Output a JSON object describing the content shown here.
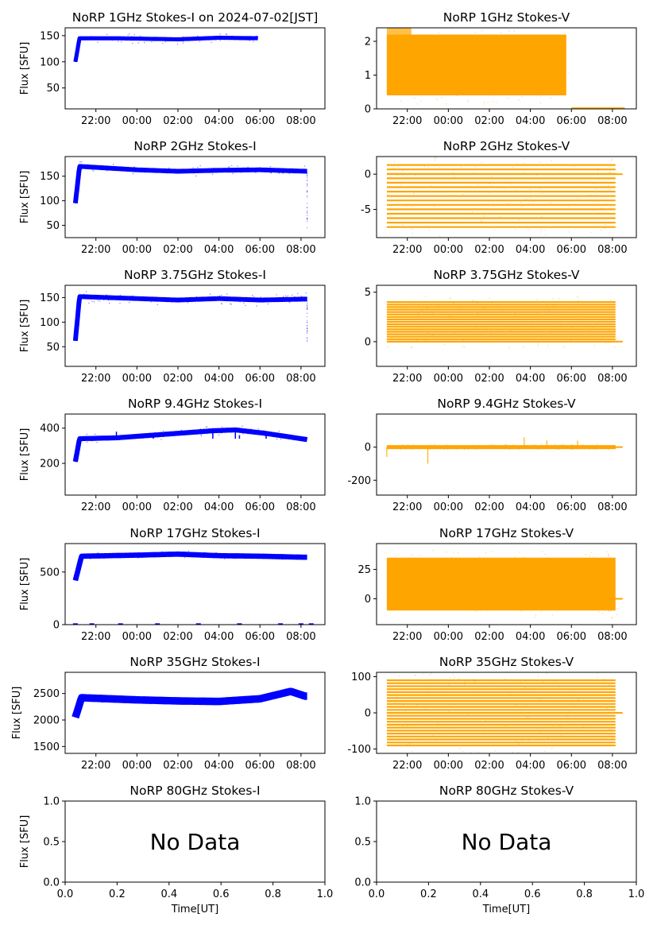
{
  "time_ticks": [
    "22:00",
    "00:00",
    "02:00",
    "04:00",
    "06:00",
    "08:00"
  ],
  "unit_ticks": [
    "0.0",
    "0.2",
    "0.4",
    "0.6",
    "0.8",
    "1.0"
  ],
  "ylabel": "Flux [SFU]",
  "xlabel": "Time[UT]",
  "no_data_text": "No Data",
  "colors": {
    "stokes_i": "#0000ff",
    "stokes_v": "#ffa500"
  },
  "chart_data": [
    {
      "type": "scatter",
      "title": "NoRP 1GHz Stokes-I on 2024-07-02[JST]",
      "ylabel": "Flux [SFU]",
      "xlim": [
        "20:30",
        "09:10"
      ],
      "ylim": [
        10,
        165
      ],
      "yticks": [
        50,
        100,
        150
      ],
      "series": [
        {
          "values": [
            [
              21.0,
              100
            ],
            [
              21.2,
              145
            ],
            [
              23.0,
              145
            ],
            [
              2.0,
              143
            ],
            [
              4.0,
              146
            ],
            [
              5.9,
              145
            ]
          ]
        }
      ]
    },
    {
      "type": "scatter",
      "title": "NoRP 1GHz Stokes-V",
      "xlim": [
        "20:30",
        "09:10"
      ],
      "ylim": [
        0,
        2.4
      ],
      "yticks": [
        0,
        1,
        2
      ],
      "series": [
        {
          "values": [
            [
              21.0,
              1.6
            ],
            [
              22.0,
              1.4
            ],
            [
              0.0,
              1.2
            ],
            [
              2.0,
              1.2
            ],
            [
              4.0,
              1.2
            ],
            [
              5.9,
              1.3
            ],
            [
              8.5,
              0.0
            ]
          ]
        }
      ]
    },
    {
      "type": "scatter",
      "title": "NoRP 2GHz Stokes-I",
      "ylabel": "Flux [SFU]",
      "xlim": [
        "20:30",
        "09:10"
      ],
      "ylim": [
        25,
        190
      ],
      "yticks": [
        50,
        100,
        150
      ],
      "series": [
        {
          "values": [
            [
              21.0,
              95
            ],
            [
              21.2,
              170
            ],
            [
              0.0,
              163
            ],
            [
              2.0,
              160
            ],
            [
              4.0,
              162
            ],
            [
              6.0,
              163
            ],
            [
              8.3,
              160
            ]
          ]
        }
      ]
    },
    {
      "type": "scatter",
      "title": "NoRP 2GHz Stokes-V",
      "xlim": [
        "20:30",
        "09:10"
      ],
      "ylim": [
        -9,
        2.5
      ],
      "yticks": [
        -5,
        0
      ],
      "series": [
        {
          "values": [
            [
              21.0,
              0
            ],
            [
              0.0,
              -3
            ],
            [
              4.0,
              -3
            ],
            [
              8.5,
              0
            ]
          ]
        }
      ]
    },
    {
      "type": "scatter",
      "title": "NoRP 3.75GHz Stokes-I",
      "ylabel": "Flux [SFU]",
      "xlim": [
        "20:30",
        "09:10"
      ],
      "ylim": [
        10,
        175
      ],
      "yticks": [
        50,
        100,
        150
      ],
      "series": [
        {
          "values": [
            [
              21.0,
              62
            ],
            [
              21.2,
              152
            ],
            [
              0.0,
              148
            ],
            [
              2.0,
              145
            ],
            [
              4.0,
              148
            ],
            [
              6.0,
              145
            ],
            [
              8.3,
              147
            ]
          ]
        }
      ]
    },
    {
      "type": "scatter",
      "title": "NoRP 3.75GHz Stokes-V",
      "xlim": [
        "20:30",
        "09:10"
      ],
      "ylim": [
        -2.5,
        5.7
      ],
      "yticks": [
        0,
        5
      ],
      "series": [
        {
          "values": [
            [
              21.0,
              -0.5
            ],
            [
              0.0,
              2.0
            ],
            [
              4.0,
              2.0
            ],
            [
              8.5,
              0
            ]
          ]
        }
      ]
    },
    {
      "type": "scatter",
      "title": "NoRP 9.4GHz Stokes-I",
      "ylabel": "Flux [SFU]",
      "xlim": [
        "20:30",
        "09:10"
      ],
      "ylim": [
        20,
        480
      ],
      "yticks": [
        200,
        400
      ],
      "series": [
        {
          "values": [
            [
              21.0,
              210
            ],
            [
              21.2,
              340
            ],
            [
              23.0,
              345
            ],
            [
              3.7,
              385
            ],
            [
              4.8,
              390
            ],
            [
              6.3,
              370
            ],
            [
              8.3,
              335
            ]
          ]
        }
      ]
    },
    {
      "type": "scatter",
      "title": "NoRP 9.4GHz Stokes-V",
      "xlim": [
        "20:30",
        "09:10"
      ],
      "ylim": [
        -290,
        200
      ],
      "yticks": [
        -200,
        0
      ],
      "series": [
        {
          "values": [
            [
              21.0,
              0
            ],
            [
              23.0,
              0
            ],
            [
              3.7,
              15
            ],
            [
              4.8,
              10
            ],
            [
              8.5,
              0
            ]
          ]
        }
      ]
    },
    {
      "type": "scatter",
      "title": "NoRP 17GHz Stokes-I",
      "ylabel": "Flux [SFU]",
      "xlim": [
        "20:30",
        "09:10"
      ],
      "ylim": [
        0,
        770
      ],
      "yticks": [
        0,
        500
      ],
      "series": [
        {
          "values": [
            [
              21.0,
              420
            ],
            [
              21.3,
              650
            ],
            [
              0.0,
              660
            ],
            [
              2.0,
              670
            ],
            [
              4.0,
              655
            ],
            [
              6.0,
              650
            ],
            [
              8.2,
              640
            ]
          ]
        }
      ]
    },
    {
      "type": "scatter",
      "title": "NoRP 17GHz Stokes-V",
      "xlim": [
        "20:30",
        "09:10"
      ],
      "ylim": [
        -22,
        47
      ],
      "yticks": [
        0,
        25
      ],
      "series": [
        {
          "values": [
            [
              21.0,
              0
            ],
            [
              0.0,
              12
            ],
            [
              4.0,
              12
            ],
            [
              8.5,
              0
            ]
          ]
        }
      ]
    },
    {
      "type": "scatter",
      "title": "NoRP 35GHz Stokes-I",
      "ylabel": "Flux [SFU]",
      "xlim": [
        "20:30",
        "09:10"
      ],
      "ylim": [
        1370,
        2900
      ],
      "yticks": [
        1500,
        2000,
        2500
      ],
      "series": [
        {
          "values": [
            [
              21.0,
              2050
            ],
            [
              21.3,
              2420
            ],
            [
              0.0,
              2380
            ],
            [
              2.0,
              2360
            ],
            [
              4.0,
              2350
            ],
            [
              6.0,
              2400
            ],
            [
              7.5,
              2540
            ],
            [
              8.2,
              2450
            ]
          ]
        }
      ]
    },
    {
      "type": "scatter",
      "title": "NoRP 35GHz Stokes-V",
      "xlim": [
        "20:30",
        "09:10"
      ],
      "ylim": [
        -112,
        112
      ],
      "yticks": [
        -100,
        0,
        100
      ],
      "series": [
        {
          "values": [
            [
              21.0,
              0
            ],
            [
              0.0,
              0
            ],
            [
              4.0,
              0
            ],
            [
              8.5,
              0
            ]
          ]
        }
      ]
    },
    {
      "type": "scatter",
      "title": "NoRP 80GHz Stokes-I",
      "ylabel": "Flux [SFU]",
      "xlabel": "Time[UT]",
      "xlim": [
        0,
        1
      ],
      "ylim": [
        0,
        1
      ],
      "yticks": [
        0.0,
        0.5,
        1.0
      ],
      "annotation": "No Data",
      "series": []
    },
    {
      "type": "scatter",
      "title": "NoRP 80GHz Stokes-V",
      "xlabel": "Time[UT]",
      "xlim": [
        0,
        1
      ],
      "ylim": [
        0,
        1
      ],
      "yticks": [
        0.0,
        0.5,
        1.0
      ],
      "annotation": "No Data",
      "series": []
    }
  ]
}
